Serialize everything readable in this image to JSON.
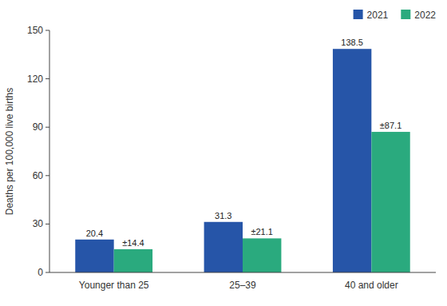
{
  "chart_data": {
    "type": "bar",
    "categories": [
      "Younger than 25",
      "25–39",
      "40 and older"
    ],
    "series": [
      {
        "name": "2021",
        "color": "#2655a8",
        "values": [
          20.4,
          31.3,
          138.5
        ]
      },
      {
        "name": "2022",
        "color": "#2aaa7e",
        "values": [
          14.4,
          21.1,
          87.1
        ],
        "value_labels": [
          "±14.4",
          "±21.1",
          "±87.1"
        ]
      }
    ],
    "ylabel": "Deaths per 100,000 live births",
    "ylim": [
      0,
      150
    ],
    "yticks": [
      0,
      30,
      60,
      90,
      120,
      150
    ],
    "grid": false,
    "legend": "top-right",
    "data_labels": true
  }
}
